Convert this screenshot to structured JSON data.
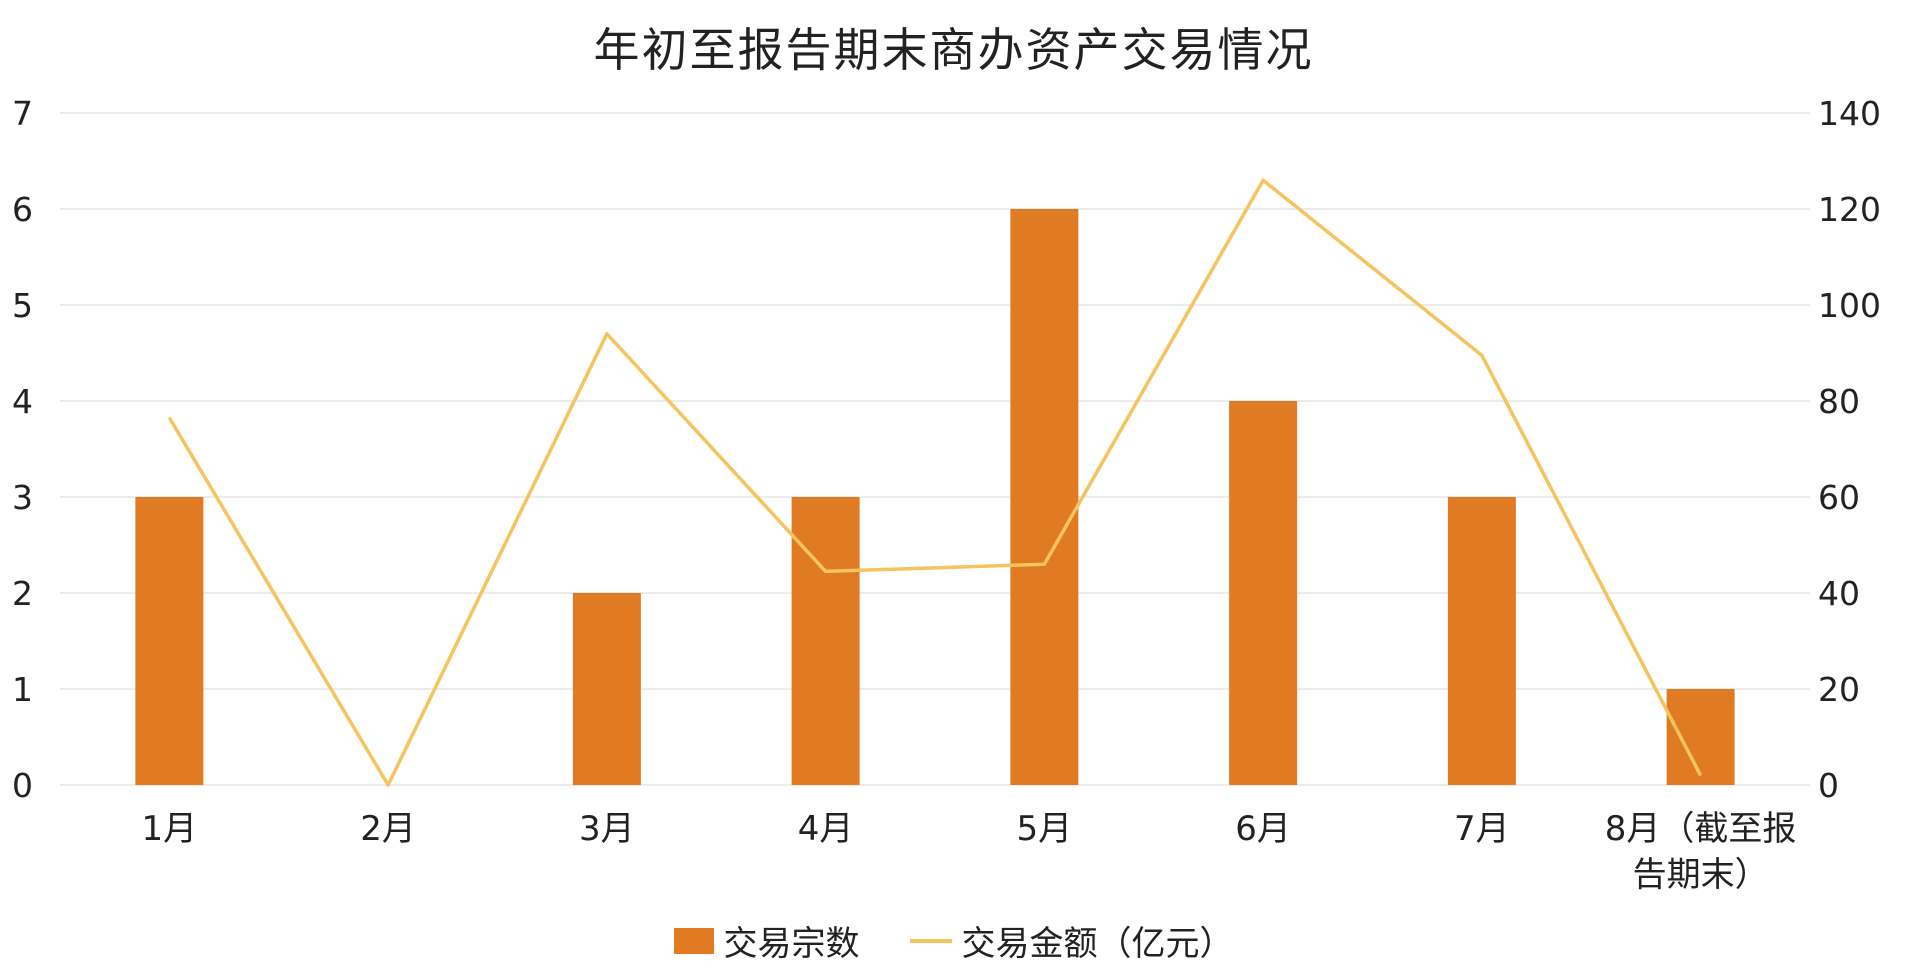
{
  "chart_data": {
    "type": "bar",
    "title": "年初至报告期末商办资产交易情况",
    "categories": [
      "1月",
      "2月",
      "3月",
      "4月",
      "5月",
      "6月",
      "7月",
      "8月（截至报告期末）"
    ],
    "category_label_lines": [
      [
        "1月"
      ],
      [
        "2月"
      ],
      [
        "3月"
      ],
      [
        "4月"
      ],
      [
        "5月"
      ],
      [
        "6月"
      ],
      [
        "7月"
      ],
      [
        "8月（截至报",
        "告期末）"
      ]
    ],
    "series": [
      {
        "name": "交易宗数",
        "type": "bar",
        "axis": "left",
        "color": "#E07A23",
        "values": [
          3,
          0,
          2,
          3,
          6,
          4,
          3,
          1
        ]
      },
      {
        "name": "交易金额（亿元）",
        "type": "line",
        "axis": "right",
        "color": "#F6C45F",
        "values": [
          76.5,
          0,
          94,
          44.5,
          46,
          126,
          89.5,
          2
        ]
      }
    ],
    "y_left": {
      "min": 0,
      "max": 7,
      "ticks": [
        "0",
        "1",
        "2",
        "3",
        "4",
        "5",
        "6",
        "7"
      ]
    },
    "y_right": {
      "min": 0,
      "max": 140,
      "ticks": [
        "0",
        "20",
        "40",
        "60",
        "80",
        "100",
        "120",
        "140"
      ]
    },
    "grid": true,
    "legend_position": "bottom"
  }
}
